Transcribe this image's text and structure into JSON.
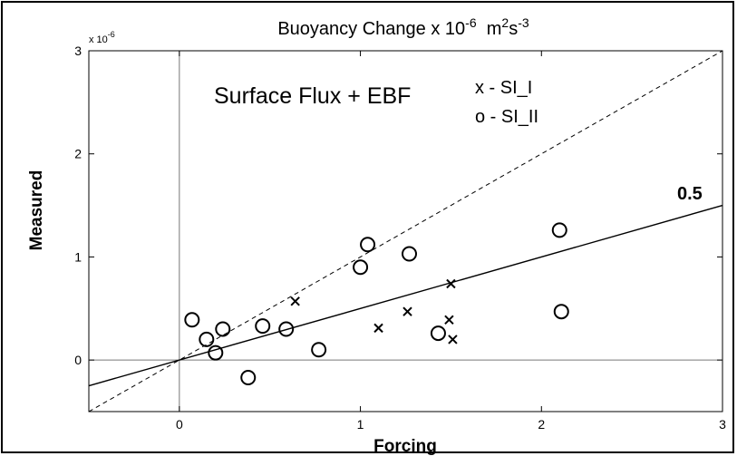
{
  "chart_data": {
    "type": "scatter",
    "title": "Buoyancy Change x 10",
    "title_exponent": "-6",
    "title_units_prefix": "m",
    "title_units_sq": "2",
    "title_units_s": "s",
    "title_units_exponent": "-3",
    "xlabel": "Forcing",
    "ylabel": "Measured",
    "y_multiplier_base": "x 10",
    "y_multiplier_exponent": "-6",
    "xlim": [
      -0.5,
      3
    ],
    "ylim": [
      -0.5,
      3
    ],
    "x_ticks": [
      0,
      1,
      2,
      3
    ],
    "x_tick_labels": [
      "0",
      "1",
      "2",
      "3"
    ],
    "y_ticks": [
      0,
      1,
      2,
      3
    ],
    "y_tick_labels": [
      "0",
      "1",
      "2",
      "3"
    ],
    "annotation_text": "Surface Flux + EBF",
    "slope_label": "0.5",
    "reference_lines": [
      {
        "slope": 1,
        "intercept": 0,
        "style": "dashed"
      },
      {
        "slope": 0.5,
        "intercept": 0,
        "style": "solid"
      }
    ],
    "zero_lines": true,
    "grid": false,
    "legend": {
      "position": "top-center",
      "entries": [
        {
          "marker": "x",
          "label": "x - SI_I"
        },
        {
          "marker": "o",
          "label": "o - SI_II"
        }
      ]
    },
    "series": [
      {
        "name": "SI_I",
        "marker": "x",
        "points": [
          [
            0.64,
            0.57
          ],
          [
            1.1,
            0.31
          ],
          [
            1.26,
            0.47
          ],
          [
            1.5,
            0.74
          ],
          [
            1.49,
            0.39
          ],
          [
            1.51,
            0.2
          ]
        ]
      },
      {
        "name": "SI_II",
        "marker": "o",
        "points": [
          [
            0.07,
            0.39
          ],
          [
            0.15,
            0.2
          ],
          [
            0.2,
            0.07
          ],
          [
            0.24,
            0.3
          ],
          [
            0.46,
            0.33
          ],
          [
            0.59,
            0.3
          ],
          [
            0.38,
            -0.17
          ],
          [
            0.77,
            0.1
          ],
          [
            1.0,
            0.9
          ],
          [
            1.04,
            1.12
          ],
          [
            1.27,
            1.03
          ],
          [
            1.43,
            0.26
          ],
          [
            2.1,
            1.26
          ],
          [
            2.11,
            0.47
          ]
        ]
      }
    ]
  }
}
